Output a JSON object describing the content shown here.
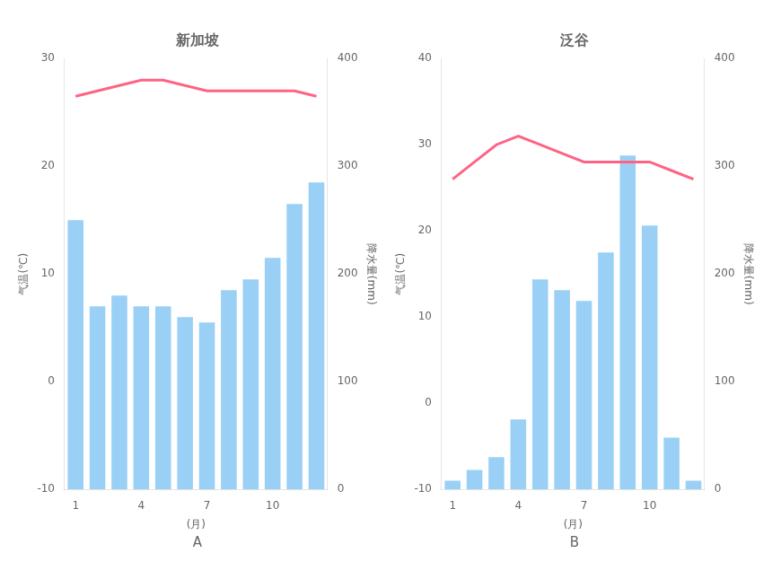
{
  "chart_data": [
    {
      "type": "bar",
      "title": "新加坡",
      "subtitle": "A",
      "x_label": "(月)",
      "y_label": "气温(℃)",
      "y2_label": "降水量(mm)",
      "categories": [
        "1",
        null,
        null,
        "4",
        null,
        null,
        "7",
        null,
        null,
        "10",
        null,
        null
      ],
      "series": [
        {
          "type": "bar",
          "axis": "y2",
          "values": [
            250,
            170,
            180,
            170,
            170,
            160,
            155,
            185,
            195,
            215,
            265,
            285
          ]
        },
        {
          "type": "line",
          "marker": "none",
          "values": [
            26.5,
            27.0,
            27.5,
            28.0,
            28.0,
            27.5,
            27.0,
            27.0,
            27.0,
            27.0,
            27.0,
            26.5
          ]
        }
      ],
      "ylim": [
        -10,
        30
      ],
      "yticks": [
        -10,
        0,
        10,
        20,
        30
      ],
      "y2lim": [
        0,
        400
      ],
      "y2ticks": [
        0,
        100,
        200,
        300,
        400
      ],
      "grid": false
    },
    {
      "type": "bar",
      "title": "泛谷",
      "subtitle": "B",
      "x_label": "(月)",
      "y_label": "气温(℃)",
      "y2_label": "降水量(mm)",
      "categories": [
        "1",
        null,
        null,
        "4",
        null,
        null,
        "7",
        null,
        null,
        "10",
        null,
        null
      ],
      "series": [
        {
          "type": "bar",
          "axis": "y2",
          "values": [
            8,
            18,
            30,
            65,
            195,
            185,
            175,
            220,
            310,
            245,
            48,
            8
          ]
        },
        {
          "type": "line",
          "marker": "none",
          "values": [
            26,
            28,
            30,
            31,
            30,
            29,
            28,
            28,
            28,
            28,
            27,
            26
          ]
        }
      ],
      "ylim": [
        -10,
        40
      ],
      "yticks": [
        -10,
        0,
        10,
        20,
        30,
        40
      ],
      "y2lim": [
        0,
        400
      ],
      "y2ticks": [
        0,
        100,
        200,
        300,
        400
      ],
      "grid": false
    }
  ]
}
